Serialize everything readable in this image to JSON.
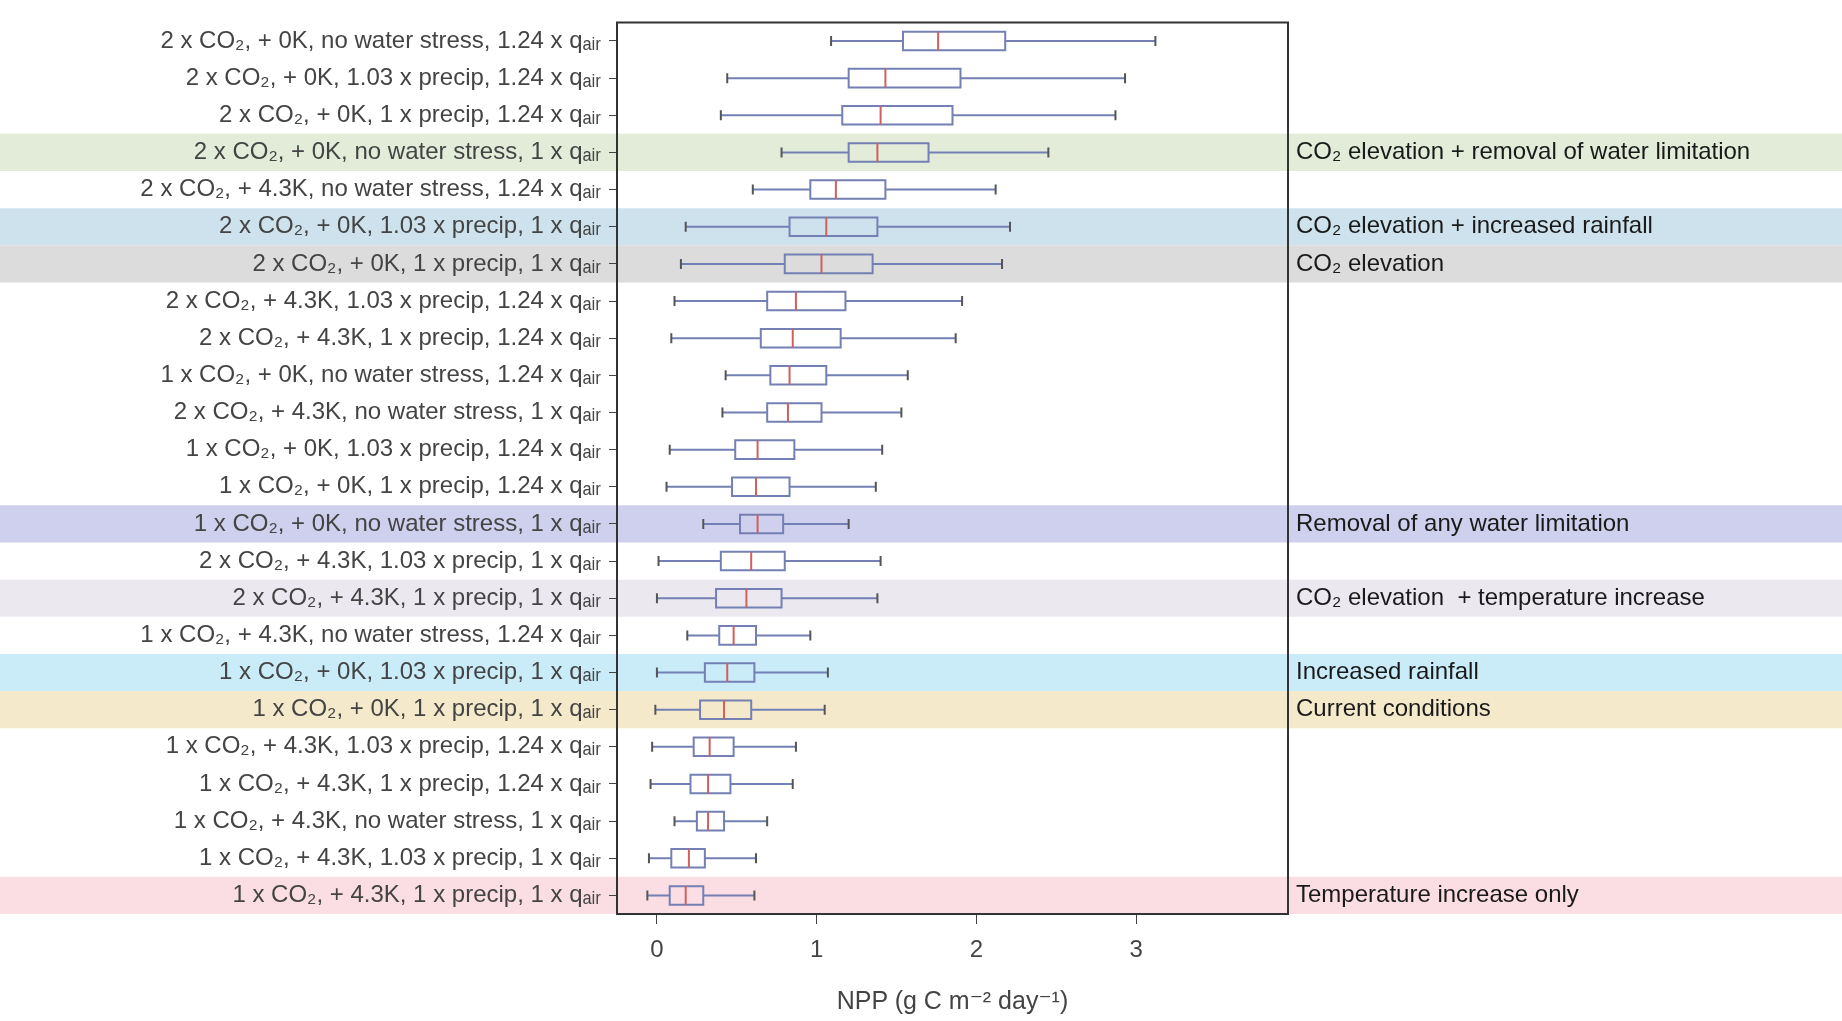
{
  "chart_data": {
    "type": "box",
    "orientation": "horizontal",
    "xlabel": "NPP (g C m⁻² day⁻¹)",
    "categories": [
      "2 x CO₂, + 0K, no water stress, 1.24 x qₐᵢᵣ",
      "2 x CO₂, + 0K, 1.03 x precip, 1.24 x qₐᵢᵣ",
      "2 x CO₂, + 0K, 1 x precip, 1.24 x qₐᵢᵣ",
      "2 x CO₂, + 0K, no water stress, 1 x qₐᵢᵣ",
      "2 x CO₂, + 4.3K, no water stress, 1.24 x qₐᵢᵣ",
      "2 x CO₂, + 0K, 1.03 x precip, 1 x qₐᵢᵣ",
      "2 x CO₂, + 0K, 1 x precip, 1 x qₐᵢᵣ",
      "2 x CO₂, + 4.3K, 1.03 x precip, 1.24 x qₐᵢᵣ",
      "2 x CO₂, + 4.3K, 1 x precip, 1.24 x qₐᵢᵣ",
      "1 x CO₂, + 0K, no water stress, 1.24 x qₐᵢᵣ",
      "2 x CO₂, + 4.3K, no water stress, 1 x qₐᵢᵣ",
      "1 x CO₂, + 0K, 1.03 x precip, 1.24 x qₐᵢᵣ",
      "1 x CO₂, + 0K, 1 x precip, 1.24 x qₐᵢᵣ",
      "1 x CO₂, + 0K, no water stress, 1 x qₐᵢᵣ",
      "2 x CO₂, + 4.3K, 1.03 x precip, 1 x qₐᵢᵣ",
      "2 x CO₂, + 4.3K, 1 x precip, 1 x qₐᵢᵣ",
      "1 x CO₂, + 4.3K, no water stress, 1.24 x qₐᵢᵣ",
      "1 x CO₂, + 0K, 1.03 x precip, 1 x qₐᵢᵣ",
      "1 x CO₂, + 0K, 1 x precip, 1 x qₐᵢᵣ",
      "1 x CO₂, + 4.3K, 1.03 x precip, 1.24 x qₐᵢᵣ",
      "1 x CO₂, + 4.3K, 1 x precip, 1.24 x qₐᵢᵣ",
      "1 x CO₂, + 4.3K, no water stress, 1 x qₐᵢᵣ",
      "1 x CO₂, + 4.3K, 1.03 x precip, 1 x qₐᵢᵣ",
      "1 x CO₂, + 4.3K, 1 x precip, 1 x qₐᵢᵣ"
    ],
    "series": [
      {
        "color": "#7480b4",
        "boxes": [
          {
            "low": 1.09,
            "q1": 1.54,
            "median": 1.76,
            "q3": 2.18,
            "high": 3.12
          },
          {
            "low": 0.44,
            "q1": 1.2,
            "median": 1.43,
            "q3": 1.9,
            "high": 2.93
          },
          {
            "low": 0.4,
            "q1": 1.16,
            "median": 1.4,
            "q3": 1.85,
            "high": 2.87
          },
          {
            "low": 0.78,
            "q1": 1.2,
            "median": 1.38,
            "q3": 1.7,
            "high": 2.45
          },
          {
            "low": 0.6,
            "q1": 0.96,
            "median": 1.12,
            "q3": 1.43,
            "high": 2.12
          },
          {
            "low": 0.18,
            "q1": 0.83,
            "median": 1.06,
            "q3": 1.38,
            "high": 2.21
          },
          {
            "low": 0.15,
            "q1": 0.8,
            "median": 1.03,
            "q3": 1.35,
            "high": 2.16
          },
          {
            "low": 0.11,
            "q1": 0.69,
            "median": 0.87,
            "q3": 1.18,
            "high": 1.91
          },
          {
            "low": 0.09,
            "q1": 0.65,
            "median": 0.85,
            "q3": 1.15,
            "high": 1.87
          },
          {
            "low": 0.43,
            "q1": 0.71,
            "median": 0.83,
            "q3": 1.06,
            "high": 1.57
          },
          {
            "low": 0.41,
            "q1": 0.69,
            "median": 0.82,
            "q3": 1.03,
            "high": 1.53
          },
          {
            "low": 0.08,
            "q1": 0.49,
            "median": 0.63,
            "q3": 0.86,
            "high": 1.41
          },
          {
            "low": 0.06,
            "q1": 0.47,
            "median": 0.62,
            "q3": 0.83,
            "high": 1.37
          },
          {
            "low": 0.29,
            "q1": 0.52,
            "median": 0.63,
            "q3": 0.79,
            "high": 1.2
          },
          {
            "low": 0.01,
            "q1": 0.4,
            "median": 0.59,
            "q3": 0.8,
            "high": 1.4
          },
          {
            "low": 0.0,
            "q1": 0.37,
            "median": 0.56,
            "q3": 0.78,
            "high": 1.38
          },
          {
            "low": 0.19,
            "q1": 0.39,
            "median": 0.48,
            "q3": 0.62,
            "high": 0.96
          },
          {
            "low": 0.0,
            "q1": 0.3,
            "median": 0.44,
            "q3": 0.61,
            "high": 1.07
          },
          {
            "low": -0.01,
            "q1": 0.27,
            "median": 0.42,
            "q3": 0.59,
            "high": 1.05
          },
          {
            "low": -0.03,
            "q1": 0.23,
            "median": 0.33,
            "q3": 0.48,
            "high": 0.87
          },
          {
            "low": -0.04,
            "q1": 0.21,
            "median": 0.32,
            "q3": 0.46,
            "high": 0.85
          },
          {
            "low": 0.11,
            "q1": 0.25,
            "median": 0.32,
            "q3": 0.42,
            "high": 0.69
          },
          {
            "low": -0.05,
            "q1": 0.09,
            "median": 0.2,
            "q3": 0.3,
            "high": 0.62
          },
          {
            "low": -0.06,
            "q1": 0.08,
            "median": 0.18,
            "q3": 0.29,
            "high": 0.61
          }
        ]
      }
    ],
    "xlim": [
      -0.25,
      3.95
    ],
    "xticks": [
      0,
      1,
      2,
      3
    ],
    "bands": [
      {
        "axis": "y",
        "from": "2 x CO₂, + 0K, no water stress, 1 x qₐᵢᵣ",
        "to": "2 x CO₂, + 0K, no water stress, 1 x qₐᵢᵣ",
        "label": "CO₂ elevation + removal of water limitation",
        "color": "#e2ecd9"
      },
      {
        "axis": "y",
        "from": "2 x CO₂, + 0K, 1.03 x precip, 1 x qₐᵢᵣ",
        "to": "2 x CO₂, + 0K, 1.03 x precip, 1 x qₐᵢᵣ",
        "label": "CO₂ elevation + increased rainfall",
        "color": "#cde2ec"
      },
      {
        "axis": "y",
        "from": "2 x CO₂, + 0K, 1 x precip, 1 x qₐᵢᵣ",
        "to": "2 x CO₂, + 0K, 1 x precip, 1 x qₐᵢᵣ",
        "label": "CO₂ elevation",
        "color": "#dcdcdc"
      },
      {
        "axis": "y",
        "from": "1 x CO₂, + 0K, no water stress, 1 x qₐᵢᵣ",
        "to": "1 x CO₂, + 0K, no water stress, 1 x qₐᵢᵣ",
        "label": "Removal of any water limitation",
        "color": "#cfcfee"
      },
      {
        "axis": "y",
        "from": "2 x CO₂, + 4.3K, 1 x precip, 1 x qₐᵢᵣ",
        "to": "2 x CO₂, + 4.3K, 1 x precip, 1 x qₐᵢᵣ",
        "label": "CO₂ elevation  + temperature increase",
        "color": "#ebe8f0"
      },
      {
        "axis": "y",
        "from": "1 x CO₂, + 0K, 1.03 x precip, 1 x qₐᵢᵣ",
        "to": "1 x CO₂, + 0K, 1.03 x precip, 1 x qₐᵢᵣ",
        "label": "Increased rainfall",
        "color": "#c9ecf8"
      },
      {
        "axis": "y",
        "from": "1 x CO₂, + 0K, 1 x precip, 1 x qₐᵢᵣ",
        "to": "1 x CO₂, + 0K, 1 x precip, 1 x qₐᵢᵣ",
        "label": "Current conditions",
        "color": "#f5e9cb"
      },
      {
        "axis": "y",
        "from": "1 x CO₂, + 4.3K, 1 x precip, 1 x qₐᵢᵣ",
        "to": "1 x CO₂, + 4.3K, 1 x precip, 1 x qₐᵢᵣ",
        "label": "Temperature increase only",
        "color": "#fbdde4"
      }
    ],
    "grid": false
  }
}
